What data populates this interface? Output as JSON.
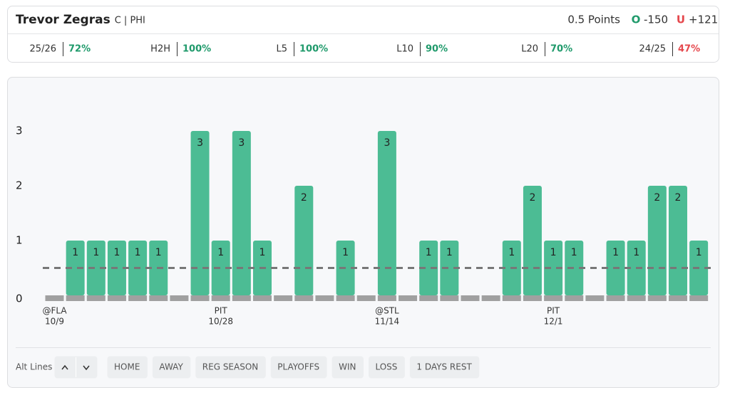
{
  "header": {
    "player": "Trevor Zegras",
    "position": "C | PHI",
    "line": "0.5 Points",
    "over_label": "O",
    "over_odds": "-150",
    "under_label": "U",
    "under_odds": "+121"
  },
  "stats": [
    {
      "label": "25/26",
      "value": "72%",
      "color": "#1f9a6b"
    },
    {
      "label": "H2H",
      "value": "100%",
      "color": "#1f9a6b"
    },
    {
      "label": "L5",
      "value": "100%",
      "color": "#1f9a6b"
    },
    {
      "label": "L10",
      "value": "90%",
      "color": "#1f9a6b"
    },
    {
      "label": "L20",
      "value": "70%",
      "color": "#1f9a6b"
    },
    {
      "label": "24/25",
      "value": "47%",
      "color": "#e5484d"
    }
  ],
  "chart_data": {
    "type": "bar",
    "color": "#4cbc94",
    "threshold": 0.5,
    "categories": [
      "@FLA",
      null,
      null,
      null,
      null,
      null,
      null,
      null,
      "PIT",
      null,
      null,
      null,
      null,
      null,
      null,
      null,
      "@STL",
      null,
      null,
      null,
      null,
      null,
      null,
      null,
      "PIT",
      null,
      null,
      null,
      null,
      null,
      null,
      null
    ],
    "dates": [
      "10/9",
      null,
      null,
      null,
      null,
      null,
      null,
      null,
      "10/28",
      null,
      null,
      null,
      null,
      null,
      null,
      null,
      "11/14",
      null,
      null,
      null,
      null,
      null,
      null,
      null,
      "12/1",
      null,
      null,
      null,
      null,
      null,
      null,
      null
    ],
    "values": [
      0,
      1,
      1,
      1,
      1,
      1,
      0,
      3,
      1,
      3,
      1,
      0,
      2,
      0,
      1,
      0,
      3,
      0,
      1,
      1,
      0,
      0,
      1,
      2,
      1,
      1,
      0,
      1,
      1,
      2,
      2,
      1
    ],
    "ylim": [
      0,
      3
    ],
    "yticks": [
      0,
      1,
      2,
      3
    ]
  },
  "filters": {
    "label": "Alt Lines",
    "buttons": [
      "HOME",
      "AWAY",
      "REG SEASON",
      "PLAYOFFS",
      "WIN",
      "LOSS",
      "1 DAYS REST"
    ]
  }
}
